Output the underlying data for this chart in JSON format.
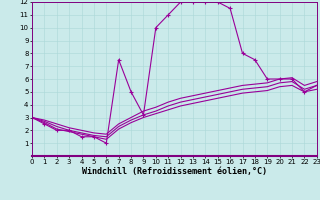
{
  "xlabel": "Windchill (Refroidissement éolien,°C)",
  "xlim": [
    0,
    23
  ],
  "ylim": [
    0,
    12
  ],
  "xticks": [
    0,
    1,
    2,
    3,
    4,
    5,
    6,
    7,
    8,
    9,
    10,
    11,
    12,
    13,
    14,
    15,
    16,
    17,
    18,
    19,
    20,
    21,
    22,
    23
  ],
  "yticks": [
    1,
    2,
    3,
    4,
    5,
    6,
    7,
    8,
    9,
    10,
    11,
    12
  ],
  "bg_color": "#caeaea",
  "line_color": "#990099",
  "grid_color": "#aad8d8",
  "line1_x": [
    0,
    1,
    2,
    3,
    4,
    5,
    6,
    7,
    8,
    9,
    10,
    11,
    12,
    13,
    14,
    15,
    16,
    17,
    18,
    19,
    20,
    21,
    22,
    23
  ],
  "line1_y": [
    3.0,
    2.5,
    2.0,
    2.0,
    1.5,
    1.5,
    1.0,
    7.5,
    5.0,
    3.2,
    10.0,
    11.0,
    12.0,
    12.0,
    12.0,
    12.0,
    11.5,
    8.0,
    7.5,
    6.0,
    6.0,
    6.0,
    5.0,
    5.5
  ],
  "line2_x": [
    0,
    1,
    2,
    3,
    4,
    5,
    6,
    7,
    8,
    9,
    10,
    11,
    12,
    13,
    14,
    15,
    16,
    17,
    18,
    19,
    20,
    21,
    22,
    23
  ],
  "line2_y": [
    3.0,
    2.8,
    2.5,
    2.2,
    2.0,
    1.8,
    1.7,
    2.5,
    3.0,
    3.5,
    3.8,
    4.2,
    4.5,
    4.7,
    4.9,
    5.1,
    5.3,
    5.5,
    5.6,
    5.7,
    6.0,
    6.1,
    5.5,
    5.8
  ],
  "line3_x": [
    0,
    1,
    2,
    3,
    4,
    5,
    6,
    7,
    8,
    9,
    10,
    11,
    12,
    13,
    14,
    15,
    16,
    17,
    18,
    19,
    20,
    21,
    22,
    23
  ],
  "line3_y": [
    3.0,
    2.7,
    2.3,
    2.0,
    1.8,
    1.6,
    1.5,
    2.3,
    2.8,
    3.2,
    3.5,
    3.9,
    4.2,
    4.4,
    4.6,
    4.8,
    5.0,
    5.2,
    5.3,
    5.4,
    5.7,
    5.8,
    5.2,
    5.5
  ],
  "line4_x": [
    0,
    1,
    2,
    3,
    4,
    5,
    6,
    7,
    8,
    9,
    10,
    11,
    12,
    13,
    14,
    15,
    16,
    17,
    18,
    19,
    20,
    21,
    22,
    23
  ],
  "line4_y": [
    3.0,
    2.6,
    2.1,
    1.9,
    1.7,
    1.5,
    1.3,
    2.1,
    2.6,
    3.0,
    3.3,
    3.6,
    3.9,
    4.1,
    4.3,
    4.5,
    4.7,
    4.9,
    5.0,
    5.1,
    5.4,
    5.5,
    5.0,
    5.2
  ],
  "marker": "+",
  "markersize": 3,
  "linewidth": 0.8,
  "tick_fontsize": 5.0,
  "xlabel_fontsize": 6.0
}
